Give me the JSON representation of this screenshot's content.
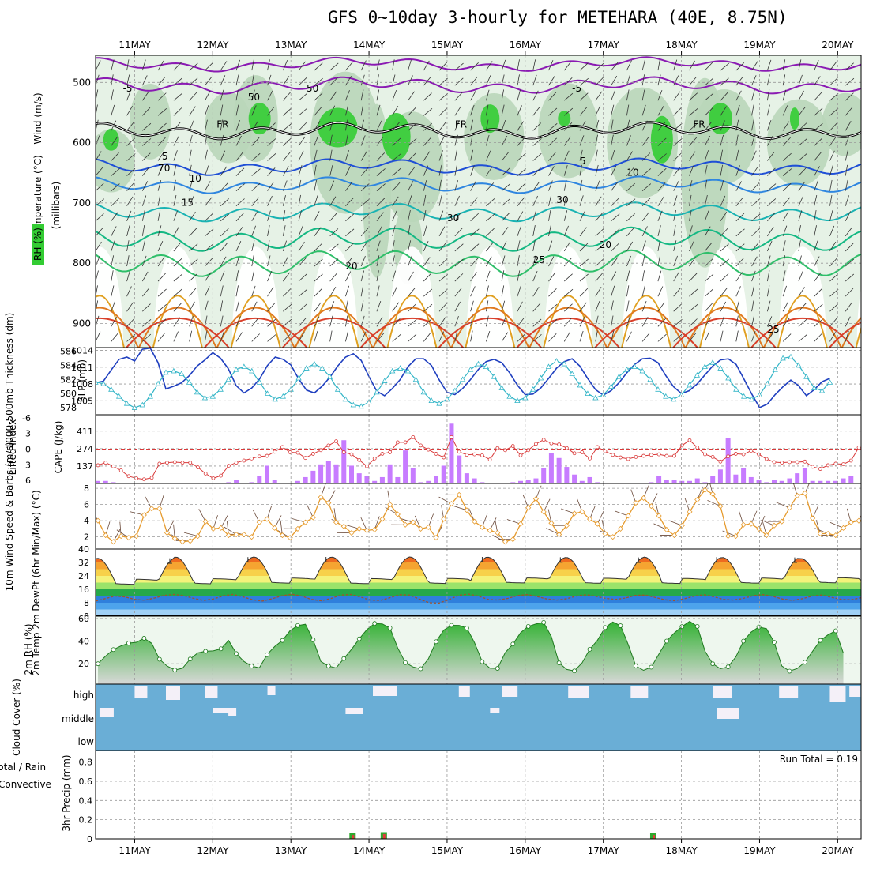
{
  "title": "GFS 0~10day 3-hourly for METEHARA (40E, 8.75N)",
  "dates": [
    "11MAY",
    "12MAY",
    "13MAY",
    "14MAY",
    "15MAY",
    "16MAY",
    "17MAY",
    "18MAY",
    "19MAY",
    "20MAY"
  ],
  "colors": {
    "rh_light": "#e6f2e6",
    "rh_mid": "#b9d6b9",
    "rh_dark": "#8fb38f",
    "rh_green": "#33cc33",
    "slp": "#1f3fbf",
    "thick": "#33b5c7",
    "li": "#d93a3a",
    "cape": "#c77cff",
    "wind": "#e69b2e",
    "rh2": "#2ea82e",
    "cloud": "#6aaed6",
    "precip_total": "#2ea82e",
    "precip_conv": "#e23b3b"
  },
  "chart_data": [
    {
      "type": "heatmap",
      "name": "upper_air",
      "ylabel_parts": [
        "Wind (m/s)",
        "Temperature (°C)",
        "(millibars)",
        "RH (%)"
      ],
      "yticks": [
        500,
        600,
        700,
        800,
        900
      ],
      "ylim": [
        940,
        455
      ],
      "freezing_label": "FR",
      "isotherm_labels": [
        "-5",
        "-5",
        "5",
        "5",
        "10",
        "10",
        "15",
        "20",
        "20",
        "25",
        "25"
      ],
      "rh_labels": [
        "50",
        "30",
        "30",
        "50",
        "70"
      ]
    },
    {
      "type": "line",
      "name": "slp_thickness",
      "ylabel_left": "1000-500mb Thickness (dm)",
      "ylabel_right": "SLP (mb)",
      "yticks_left": [
        578,
        580,
        582,
        584,
        586
      ],
      "yticks_right": [
        1005,
        1008,
        1011,
        1014
      ],
      "ylim_left": [
        577,
        586.5
      ],
      "ylim_right": [
        1002.5,
        1014.5
      ],
      "series": [
        {
          "name": "SLP",
          "axis": "right",
          "values": [
            1008.2,
            1008.5,
            1010.5,
            1012.4,
            1012.8,
            1012.1,
            1014.2,
            1014.4,
            1011.8,
            1007.1,
            1007.6,
            1008.2,
            1009.5,
            1011.2,
            1012.3,
            1013.6,
            1012.6,
            1010.7,
            1007.7,
            1006.4,
            1007.3,
            1008.9,
            1011.3,
            1012.8,
            1012.4,
            1011.4,
            1008.9,
            1006.9,
            1006.4,
            1007.6,
            1009.2,
            1011.2,
            1012.8,
            1013.4,
            1012.2,
            1009.3,
            1006.7,
            1005.9,
            1007.2,
            1008.8,
            1011.1,
            1012.5,
            1012.5,
            1011.3,
            1008.7,
            1006.5,
            1006.1,
            1007.2,
            1008.8,
            1010.6,
            1012.0,
            1012.4,
            1011.8,
            1010.0,
            1007.8,
            1006.1,
            1006.2,
            1007.3,
            1009.0,
            1010.8,
            1012.0,
            1012.5,
            1011.2,
            1009.0,
            1007.0,
            1006.0,
            1006.8,
            1008.2,
            1010.0,
            1011.5,
            1012.5,
            1012.6,
            1011.8,
            1009.5,
            1007.5,
            1006.3,
            1006.8,
            1008.0,
            1009.6,
            1011.2,
            1012.3,
            1012.5,
            1011.5,
            1008.9,
            1006.2,
            1003.8,
            1004.4,
            1006.1,
            1007.5,
            1008.7,
            1007.7,
            1005.9,
            1007.0,
            1008.4,
            1009.0
          ]
        },
        {
          "name": "Thickness",
          "axis": "left",
          "values": [
            581.6,
            581.4,
            580.6,
            579.6,
            578.6,
            578.0,
            578.4,
            579.6,
            581.4,
            583.0,
            583.2,
            582.8,
            581.6,
            580.2,
            579.4,
            579.6,
            580.6,
            582.0,
            583.4,
            583.8,
            583.2,
            581.6,
            580.0,
            579.2,
            579.6,
            580.6,
            582.2,
            583.6,
            584.2,
            583.6,
            582.4,
            580.6,
            579.2,
            578.4,
            578.2,
            578.8,
            580.2,
            581.8,
            583.2,
            583.6,
            583.2,
            582.0,
            580.2,
            579.0,
            578.6,
            579.2,
            580.4,
            582.0,
            583.4,
            584.2,
            583.8,
            582.4,
            580.8,
            579.6,
            579.0,
            579.4,
            580.6,
            582.2,
            583.8,
            584.6,
            584.2,
            582.8,
            581.2,
            580.0,
            579.4,
            579.8,
            581.0,
            582.4,
            583.4,
            583.8,
            583.2,
            582.0,
            580.6,
            579.6,
            579.2,
            579.8,
            581.2,
            582.6,
            583.8,
            584.4,
            583.6,
            582.2,
            580.6,
            579.6,
            579.2,
            579.8,
            581.4,
            583.4,
            585.0,
            585.2,
            584.0,
            582.4,
            580.8,
            580.4,
            581.6
          ]
        }
      ]
    },
    {
      "type": "bar",
      "name": "li_cape",
      "ylabel_left": "Lifted Index",
      "ylabel_right": "CAPE (J/kg)",
      "yticks_left": [
        6,
        3,
        0,
        -3,
        -6
      ],
      "yticks_right": [
        137,
        274,
        411
      ],
      "series": [
        {
          "name": "CAPE",
          "values": [
            20,
            20,
            10,
            0,
            0,
            0,
            0,
            0,
            0,
            0,
            0,
            0,
            0,
            0,
            0,
            0,
            0,
            10,
            30,
            0,
            10,
            60,
            140,
            30,
            0,
            0,
            20,
            50,
            100,
            150,
            180,
            150,
            340,
            140,
            80,
            60,
            20,
            50,
            150,
            50,
            260,
            120,
            10,
            20,
            60,
            140,
            470,
            220,
            80,
            40,
            10,
            0,
            0,
            0,
            10,
            20,
            30,
            40,
            120,
            240,
            200,
            130,
            70,
            20,
            50,
            10,
            0,
            0,
            0,
            0,
            0,
            0,
            10,
            60,
            30,
            30,
            20,
            20,
            40,
            10,
            60,
            110,
            360,
            70,
            120,
            50,
            30,
            10,
            30,
            20,
            40,
            80,
            120,
            20,
            20,
            20,
            20,
            40,
            60,
            0,
            0,
            0,
            30,
            70
          ]
        },
        {
          "name": "LI",
          "values": [
            3.1,
            2.6,
            3.3,
            4.1,
            5.2,
            5.6,
            5.8,
            5.5,
            2.8,
            2.6,
            2.5,
            2.6,
            2.6,
            3.5,
            4.7,
            5.6,
            5.1,
            3.2,
            2.6,
            2.2,
            1.8,
            1.4,
            1.3,
            0.5,
            -0.4,
            0.6,
            0.7,
            1.7,
            0.9,
            0.2,
            -0.7,
            -1.5,
            0.6,
            1.0,
            2.1,
            3.3,
            1.8,
            0.9,
            0.6,
            -1.3,
            -1.3,
            -2.3,
            -0.7,
            0.1,
            0.9,
            1.6,
            -2.3,
            0.5,
            1.1,
            1.0,
            1.2,
            2.0,
            -0.2,
            0.2,
            -0.6,
            1.2,
            0.2,
            -1.0,
            -1.8,
            -1.1,
            -0.9,
            -0.2,
            0.8,
            0.6,
            1.8,
            -0.4,
            0.4,
            1.1,
            1.6,
            1.9,
            1.5,
            1.3,
            1.1,
            1.0,
            1.3,
            1.3,
            -0.7,
            -1.7,
            -0.3,
            1.0,
            1.5,
            2.4,
            1.4,
            0.9,
            1.0,
            0.3,
            1.0,
            1.9,
            2.5,
            2.6,
            2.5,
            2.5,
            2.4,
            3.4,
            3.8,
            3.1,
            2.8,
            2.9,
            2.2,
            -0.3
          ]
        }
      ]
    },
    {
      "type": "line",
      "name": "wind10m",
      "ylabel": "10m Wind Speed & Barbs (m/s)",
      "yticks": [
        2,
        4,
        6,
        8
      ],
      "ylim": [
        0.5,
        8.6
      ],
      "values": [
        4.0,
        2.2,
        1.4,
        2.1,
        1.9,
        2.1,
        4.7,
        5.5,
        5.5,
        2.5,
        1.8,
        1.4,
        1.5,
        2.1,
        3.9,
        3.0,
        3.1,
        2.2,
        2.3,
        2.3,
        2.0,
        3.8,
        4.2,
        3.1,
        2.2,
        1.9,
        3.0,
        3.8,
        4.4,
        6.9,
        6.2,
        3.8,
        3.3,
        2.5,
        3.0,
        2.8,
        2.9,
        4.2,
        6.0,
        4.8,
        3.5,
        3.8,
        3.0,
        3.2,
        1.9,
        4.2,
        6.1,
        7.2,
        5.3,
        3.9,
        3.2,
        2.8,
        2.5,
        1.4,
        1.7,
        3.6,
        5.6,
        6.7,
        5.1,
        3.7,
        2.3,
        3.4,
        4.9,
        5.1,
        4.2,
        3.6,
        2.4,
        2.0,
        3.0,
        4.6,
        6.2,
        6.8,
        5.8,
        4.6,
        2.9,
        2.2,
        3.4,
        5.1,
        6.6,
        7.8,
        7.3,
        5.8,
        2.1,
        2.1,
        3.5,
        3.6,
        3.0,
        2.2,
        3.4,
        3.9,
        5.6,
        7.1,
        7.4,
        4.3,
        2.4,
        2.4,
        2.2,
        3.1,
        3.8,
        4.0
      ]
    },
    {
      "type": "area",
      "name": "temp2m",
      "ylabel": "2m Temp 2m DewPt (6hr Min/Max) (°C)",
      "yticks": [
        0,
        8,
        16,
        24,
        32,
        40
      ],
      "ylim": [
        0,
        40
      ],
      "temp_min_daily": [
        20.5,
        20.8,
        21.2,
        20.9,
        21.0,
        21.3,
        21.1,
        21.0,
        21.2,
        21.4
      ],
      "temp_max_daily": [
        34.5,
        35.2,
        35.3,
        35.2,
        35.3,
        35.1,
        35.0,
        35.2,
        35.0,
        34.4
      ],
      "dew_values": [
        9.0,
        10.5,
        12.0,
        11.5,
        10.0,
        9.5,
        10.8,
        12.4,
        13.0,
        12.2,
        10.6,
        9.4,
        10.2,
        12.1,
        13.0,
        11.6,
        9.8,
        9.0,
        10.4,
        12.2,
        13.1,
        12.0,
        10.0,
        9.2,
        10.6,
        12.6,
        13.0,
        11.4,
        9.6,
        9.4,
        11.0,
        12.8,
        12.6,
        10.2,
        8.0,
        7.8,
        9.8,
        12.4,
        13.2,
        12.0,
        10.0,
        9.6,
        10.6,
        12.3,
        12.9,
        11.7,
        10.2,
        9.6,
        10.4,
        12.0,
        12.8,
        11.8,
        10.6,
        10.0,
        10.8,
        12.4,
        12.6,
        11.2,
        9.8,
        9.2,
        10.4,
        12.0,
        12.8,
        11.6,
        10.0,
        9.6,
        10.6,
        12.2,
        12.9,
        11.8,
        10.2,
        9.4,
        10.4,
        12.0,
        12.6,
        11.2,
        10.0,
        9.8,
        11.0
      ]
    },
    {
      "type": "area",
      "name": "rh2m",
      "ylabel": "2m RH (%)",
      "yticks": [
        20,
        40,
        60
      ],
      "ylim": [
        2,
        62
      ],
      "values": [
        20.0,
        26.8,
        32.5,
        35.8,
        38.2,
        39.0,
        42.5,
        38.0,
        24.0,
        18.0,
        14.5,
        16.0,
        24.2,
        29.6,
        31.0,
        31.4,
        33.2,
        40.6,
        29.0,
        22.0,
        18.0,
        16.4,
        28.0,
        35.2,
        40.6,
        49.2,
        53.8,
        54.9,
        41.0,
        22.0,
        18.0,
        16.3,
        24.6,
        32.8,
        42.0,
        50.2,
        55.6,
        55.2,
        51.6,
        34.0,
        21.0,
        17.2,
        15.6,
        24.4,
        39.5,
        49.7,
        54.0,
        53.9,
        51.5,
        38.8,
        21.8,
        16.1,
        15.9,
        29.8,
        37.4,
        47.4,
        53.0,
        55.2,
        56.5,
        44.0,
        20.8,
        15.0,
        13.7,
        20.8,
        32.8,
        40.8,
        52.0,
        56.9,
        53.6,
        37.0,
        18.1,
        14.2,
        17.0,
        28.6,
        40.0,
        47.2,
        52.8,
        57.5,
        53.0,
        31.0,
        20.0,
        15.6,
        17.3,
        26.0,
        40.0,
        48.0,
        52.5,
        51.0,
        39.0,
        18.0,
        13.5,
        15.8,
        21.4,
        31.0,
        40.6,
        45.5,
        49.1,
        29.4
      ]
    },
    {
      "type": "heatmap",
      "name": "cloud_cover",
      "ylabel": "Cloud Cover (%)",
      "levels": [
        "high",
        "middle",
        "low"
      ]
    },
    {
      "type": "bar",
      "name": "precip",
      "ylabel_parts": [
        "Total / Rain",
        "Convective",
        "3hr Precip (mm)"
      ],
      "yticks": [
        0,
        0.2,
        0.4,
        0.6,
        0.8
      ],
      "ylim": [
        0,
        0.92
      ],
      "run_total_text": "Run Total = 0.19",
      "bars": [
        {
          "at": "13.8",
          "total": 0.06,
          "conv": 0.04
        },
        {
          "at": "14.2",
          "total": 0.07,
          "conv": 0.05
        },
        {
          "at": "17.65",
          "total": 0.06,
          "conv": 0.04
        }
      ]
    }
  ]
}
